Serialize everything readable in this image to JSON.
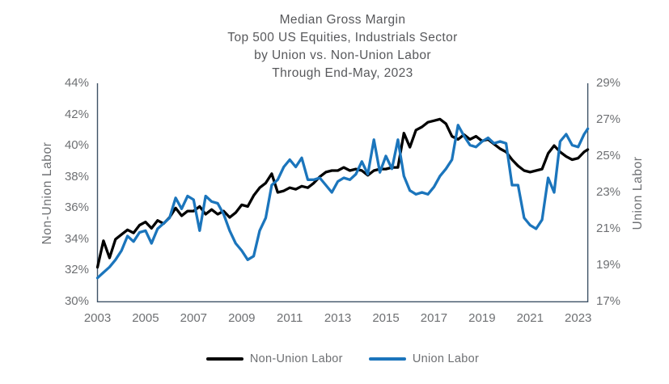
{
  "chart_data": {
    "type": "line",
    "title_lines": [
      "Median Gross Margin",
      "Top 500 US Equities, Industrials Sector",
      "by Union vs. Non-Union Labor",
      "Through End-May, 2023"
    ],
    "grid": false,
    "legend_position": "bottom",
    "x_axis": {
      "min": 2003,
      "max": 2023.4,
      "tick_years": [
        2003,
        2005,
        2007,
        2009,
        2011,
        2013,
        2015,
        2017,
        2019,
        2021,
        2023
      ],
      "ticks": [
        "2003",
        "2005",
        "2007",
        "2009",
        "2011",
        "2013",
        "2015",
        "2017",
        "2019",
        "2021",
        "2023"
      ]
    },
    "left_axis": {
      "title": "Non-Union Labor",
      "min": 30,
      "max": 44,
      "ticks": [
        "44%",
        "42%",
        "40%",
        "38%",
        "36%",
        "34%",
        "32%",
        "30%"
      ]
    },
    "right_axis": {
      "title": "Union Labor",
      "min": 17,
      "max": 29,
      "ticks": [
        "29%",
        "27%",
        "25%",
        "23%",
        "21%",
        "19%",
        "17%"
      ]
    },
    "x": [
      2003,
      2003.25,
      2003.5,
      2003.75,
      2004,
      2004.25,
      2004.5,
      2004.75,
      2005,
      2005.25,
      2005.5,
      2005.75,
      2006,
      2006.25,
      2006.5,
      2006.75,
      2007,
      2007.25,
      2007.5,
      2007.75,
      2008,
      2008.25,
      2008.5,
      2008.75,
      2009,
      2009.25,
      2009.5,
      2009.75,
      2010,
      2010.25,
      2010.5,
      2010.75,
      2011,
      2011.25,
      2011.5,
      2011.75,
      2012,
      2012.25,
      2012.5,
      2012.75,
      2013,
      2013.25,
      2013.5,
      2013.75,
      2014,
      2014.25,
      2014.5,
      2014.75,
      2015,
      2015.25,
      2015.5,
      2015.75,
      2016,
      2016.25,
      2016.5,
      2016.75,
      2017,
      2017.25,
      2017.5,
      2017.75,
      2018,
      2018.25,
      2018.5,
      2018.75,
      2019,
      2019.25,
      2019.5,
      2019.75,
      2020,
      2020.25,
      2020.5,
      2020.75,
      2021,
      2021.25,
      2021.5,
      2021.75,
      2022,
      2022.25,
      2022.5,
      2022.75,
      2023,
      2023.25,
      2023.4
    ],
    "series": [
      {
        "name": "Non-Union Labor",
        "axis": "left",
        "color": "#000000",
        "values": [
          32.2,
          33.9,
          32.8,
          34.0,
          34.3,
          34.6,
          34.4,
          34.9,
          35.1,
          34.7,
          35.2,
          35.0,
          35.4,
          36.0,
          35.5,
          35.8,
          35.8,
          36.1,
          35.6,
          35.9,
          35.6,
          35.8,
          35.4,
          35.7,
          36.2,
          36.1,
          36.8,
          37.3,
          37.6,
          38.2,
          37.0,
          37.1,
          37.3,
          37.2,
          37.4,
          37.3,
          37.6,
          38.0,
          38.3,
          38.4,
          38.4,
          38.6,
          38.4,
          38.5,
          38.4,
          38.1,
          38.4,
          38.5,
          38.5,
          38.6,
          38.6,
          40.8,
          39.9,
          41.0,
          41.2,
          41.5,
          41.6,
          41.7,
          41.4,
          40.6,
          40.4,
          40.7,
          40.4,
          40.6,
          40.3,
          40.4,
          40.1,
          39.8,
          39.6,
          39.1,
          38.7,
          38.4,
          38.3,
          38.4,
          38.5,
          39.5,
          40.0,
          39.6,
          39.3,
          39.1,
          39.2,
          39.6,
          39.75
        ]
      },
      {
        "name": "Union Labor",
        "axis": "right",
        "color": "#1b75bc",
        "values": [
          18.3,
          18.6,
          18.9,
          19.3,
          19.8,
          20.6,
          20.3,
          20.8,
          20.9,
          20.2,
          21.0,
          21.3,
          21.6,
          22.7,
          22.1,
          22.8,
          22.6,
          20.9,
          22.8,
          22.5,
          22.4,
          21.8,
          20.9,
          20.2,
          19.8,
          19.3,
          19.5,
          20.9,
          21.6,
          23.4,
          23.7,
          24.4,
          24.8,
          24.4,
          24.9,
          23.7,
          23.7,
          23.8,
          23.4,
          23.0,
          23.6,
          23.8,
          23.7,
          24.0,
          24.7,
          24.0,
          25.9,
          24.1,
          25.0,
          24.3,
          25.9,
          23.9,
          23.1,
          22.9,
          23.0,
          22.9,
          23.3,
          23.9,
          24.3,
          24.8,
          26.7,
          26.1,
          25.6,
          25.5,
          25.8,
          26.0,
          25.7,
          25.8,
          25.7,
          23.4,
          23.4,
          21.6,
          21.2,
          21.0,
          21.5,
          23.8,
          23.0,
          25.8,
          26.2,
          25.6,
          25.5,
          26.2,
          26.5
        ]
      }
    ],
    "colors": {
      "axis_line": "#3e5266",
      "tick_text": "#6e7073",
      "title_text": "#57585b"
    }
  }
}
